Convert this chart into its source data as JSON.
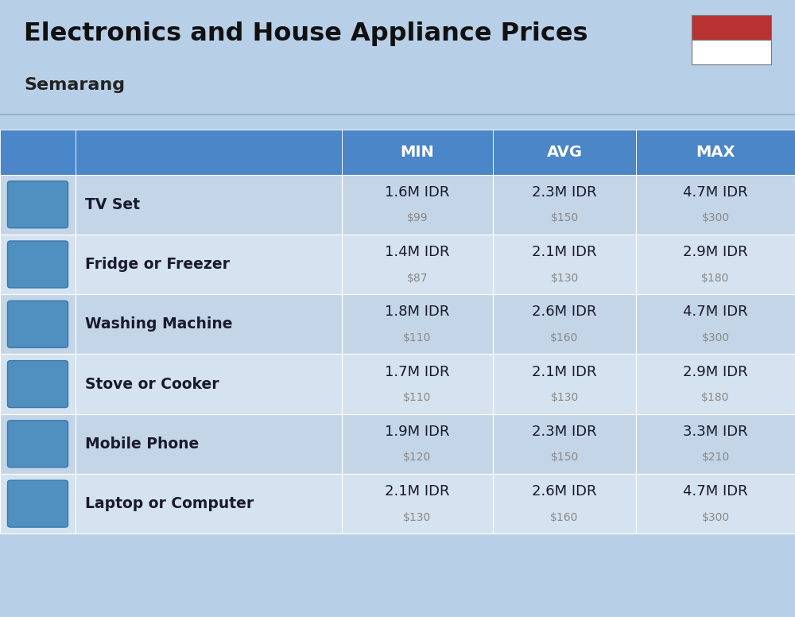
{
  "title_main": "Electronics and House Appliance Prices",
  "subtitle": "Semarang",
  "bg_color": "#b8cfe8",
  "header_color": "#4a86c8",
  "header_text_color": "#ffffff",
  "col_headers": [
    "MIN",
    "AVG",
    "MAX"
  ],
  "items": [
    {
      "name": "TV Set",
      "min_idr": "1.6M IDR",
      "min_usd": "$99",
      "avg_idr": "2.3M IDR",
      "avg_usd": "$150",
      "max_idr": "4.7M IDR",
      "max_usd": "$300"
    },
    {
      "name": "Fridge or Freezer",
      "min_idr": "1.4M IDR",
      "min_usd": "$87",
      "avg_idr": "2.1M IDR",
      "avg_usd": "$130",
      "max_idr": "2.9M IDR",
      "max_usd": "$180"
    },
    {
      "name": "Washing Machine",
      "min_idr": "1.8M IDR",
      "min_usd": "$110",
      "avg_idr": "2.6M IDR",
      "avg_usd": "$160",
      "max_idr": "4.7M IDR",
      "max_usd": "$300"
    },
    {
      "name": "Stove or Cooker",
      "min_idr": "1.7M IDR",
      "min_usd": "$110",
      "avg_idr": "2.1M IDR",
      "avg_usd": "$130",
      "max_idr": "2.9M IDR",
      "max_usd": "$180"
    },
    {
      "name": "Mobile Phone",
      "min_idr": "1.9M IDR",
      "min_usd": "$120",
      "avg_idr": "2.3M IDR",
      "avg_usd": "$150",
      "max_idr": "3.3M IDR",
      "max_usd": "$210"
    },
    {
      "name": "Laptop or Computer",
      "min_idr": "2.1M IDR",
      "min_usd": "$130",
      "avg_idr": "2.6M IDR",
      "avg_usd": "$160",
      "max_idr": "4.7M IDR",
      "max_usd": "$300"
    }
  ],
  "flag_red": "#b83232",
  "flag_white": "#ffffff",
  "idr_color": "#1a1a2e",
  "usd_color": "#888888",
  "name_color": "#1a1a2e",
  "row_color_even": "#c5d5e8",
  "row_color_odd": "#d5e2ef"
}
